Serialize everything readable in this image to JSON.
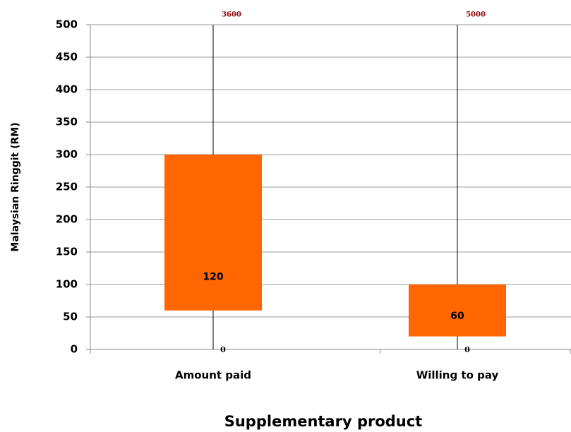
{
  "chart_data": {
    "type": "box",
    "x_label": "Supplementary product",
    "y_label": "Malaysian Ringgit (RM)",
    "categories": [
      "Amount paid",
      "Willing to pay"
    ],
    "min": [
      0,
      0
    ],
    "q1": [
      60,
      20
    ],
    "median": [
      120,
      60
    ],
    "q3": [
      300,
      100
    ],
    "max": [
      3600,
      5000
    ],
    "color": "#ff6600",
    "ylim": [
      0,
      500
    ],
    "yticks": [
      0,
      50,
      100,
      150,
      200,
      250,
      300,
      350,
      400,
      450,
      500
    ],
    "grid": true
  }
}
